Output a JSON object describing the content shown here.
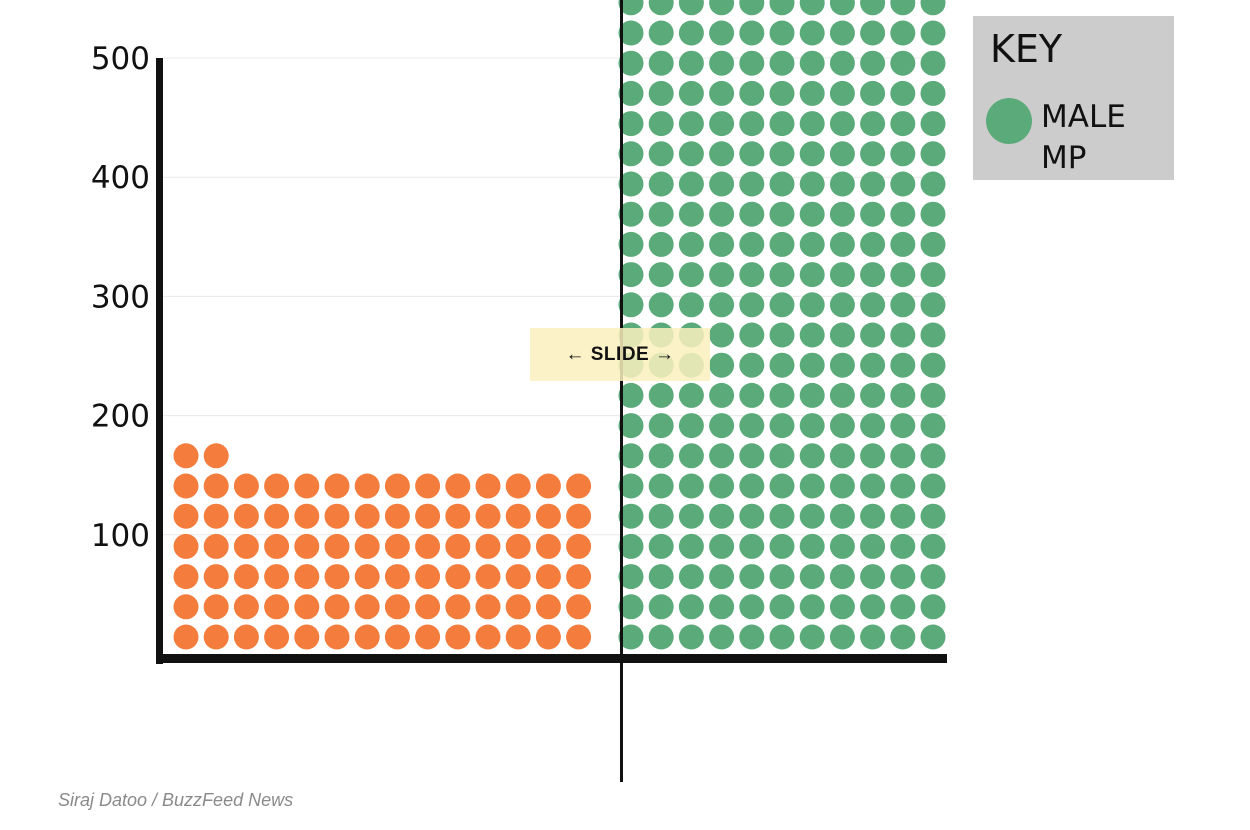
{
  "chart_data": {
    "type": "scatter",
    "subtype": "waffle-dot-comparison",
    "title": "",
    "xlabel": "",
    "ylabel": "",
    "ylim": [
      0,
      500
    ],
    "yticks": [
      {
        "value": 100,
        "label": "100"
      },
      {
        "value": 200,
        "label": "200"
      },
      {
        "value": 300,
        "label": "300"
      },
      {
        "value": 400,
        "label": "400"
      },
      {
        "value": 500,
        "label": "500"
      }
    ],
    "grid": true,
    "legend_position": "top-right",
    "legend": {
      "title": "KEY",
      "entries": [
        {
          "label_line1": "MALE",
          "label_line2": "MP",
          "color": "#5aaa7a"
        }
      ]
    },
    "series": [
      {
        "color": "#f47c3c",
        "dot_columns": 14,
        "full_rows": 6,
        "top_row_dots": 2
      },
      {
        "color": "#5aaa7a",
        "dot_columns": 11,
        "full_rows": 21,
        "top_row_dots": 11
      }
    ],
    "slider": {
      "label": "← SLIDE →"
    }
  },
  "credit": "Siraj Datoo / BuzzFeed News",
  "colors": {
    "axis": "#111111",
    "grid": "#e8e8e8",
    "legend_bg": "#cccccc",
    "slider_label_bg": "#faf0be"
  }
}
